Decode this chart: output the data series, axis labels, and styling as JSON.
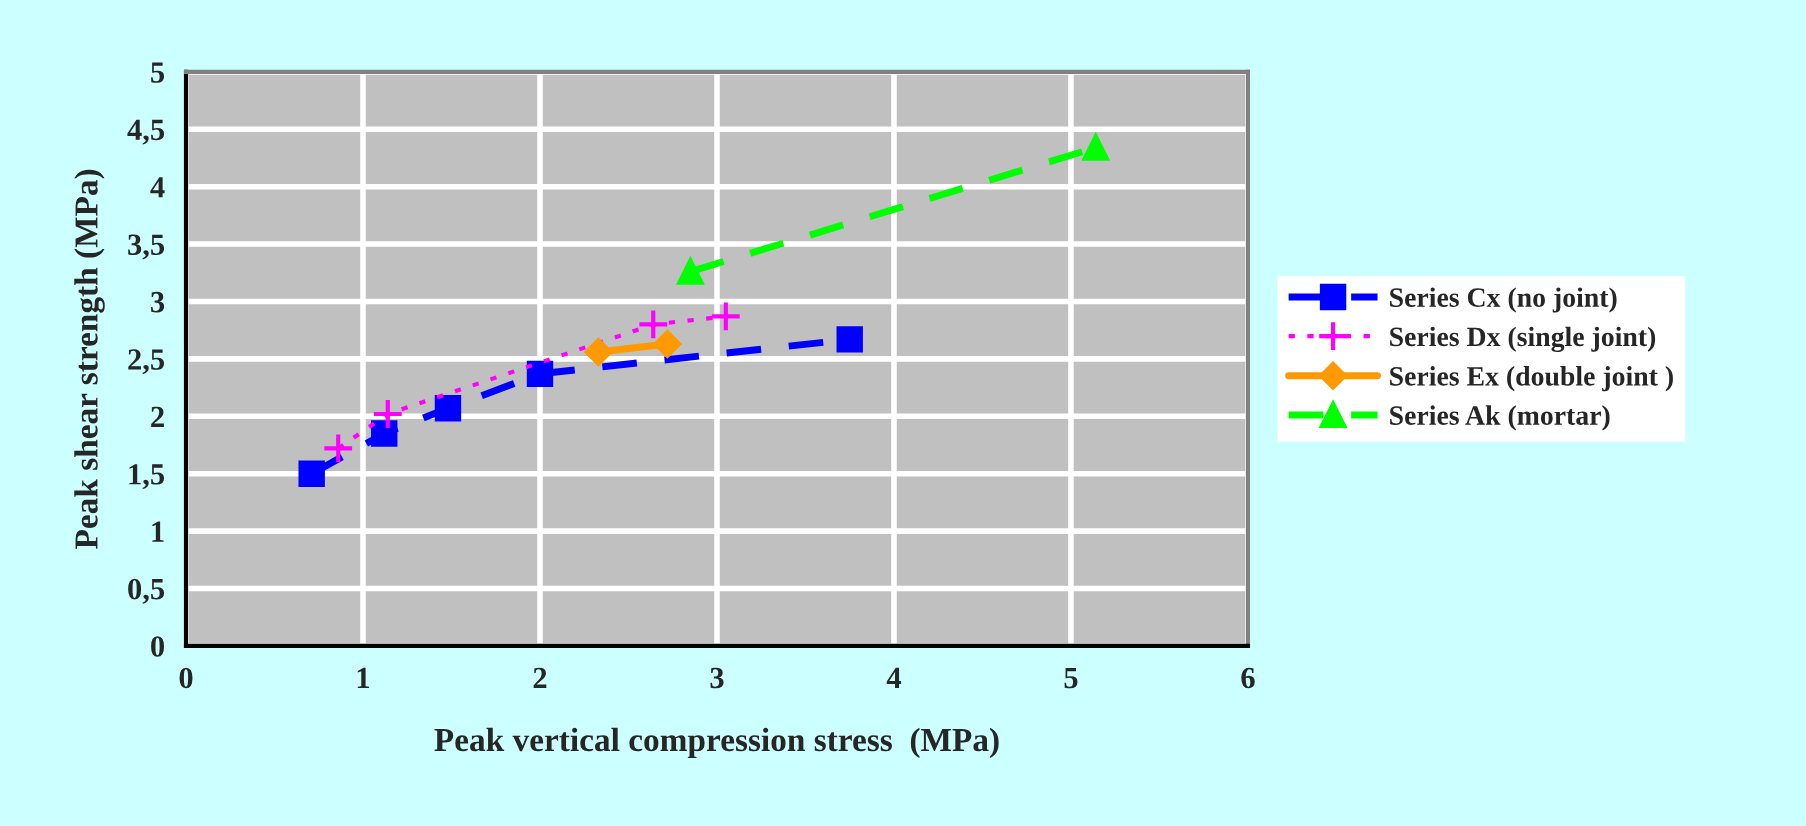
{
  "chart_data": {
    "type": "line",
    "xlabel": "Peak vertical compression stress  (MPa)",
    "ylabel": "Peak shear strength (MPa)",
    "xlim": [
      0,
      6
    ],
    "xticks": [
      0,
      1,
      2,
      3,
      4,
      5,
      6
    ],
    "ylim": [
      0,
      5
    ],
    "yticks": [
      0,
      {
        "value": 0.5,
        "label": "0,5"
      },
      1,
      {
        "value": 1.5,
        "label": "1,5"
      },
      2,
      {
        "value": 2.5,
        "label": "2,5"
      },
      3,
      {
        "value": 3.5,
        "label": "3,5"
      },
      4,
      {
        "value": 4.5,
        "label": "4,5"
      },
      5
    ],
    "grid": true,
    "legend": "right",
    "series": [
      {
        "name": "Series Cx (no joint)",
        "color": "#0000ff",
        "marker": "square",
        "line_style": "dashed",
        "x": [
          0.71,
          1.12,
          1.48,
          2.0,
          3.75
        ],
        "values": [
          1.5,
          1.85,
          2.07,
          2.37,
          2.67
        ]
      },
      {
        "name": "Series Dx (single joint)",
        "color": "#ff00ff",
        "marker": "cross",
        "line_style": "dotted",
        "x": [
          0.86,
          1.14,
          2.64,
          3.05
        ],
        "values": [
          1.72,
          2.02,
          2.8,
          2.87
        ]
      },
      {
        "name": "Series Ex (double joint )",
        "color": "#ff9900",
        "marker": "diamond",
        "line_style": "solid",
        "x": [
          2.33,
          2.72
        ],
        "values": [
          2.56,
          2.63
        ]
      },
      {
        "name": "Series Ak (mortar)",
        "color": "#00ff00",
        "marker": "triangle",
        "line_style": "dashed",
        "x": [
          2.85,
          5.14
        ],
        "values": [
          3.26,
          4.34
        ]
      }
    ]
  }
}
